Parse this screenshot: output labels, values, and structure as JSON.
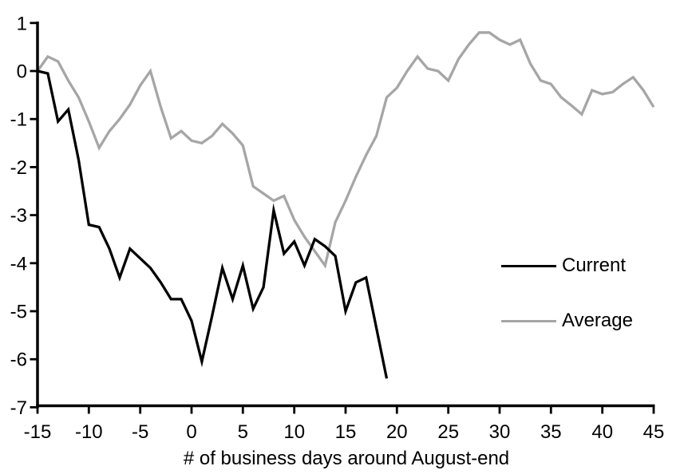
{
  "chart_data": {
    "type": "line",
    "title": "",
    "xlabel": "# of business days around August-end",
    "ylabel": "",
    "xlim": [
      -15,
      45
    ],
    "ylim": [
      -7,
      1
    ],
    "x_ticks": [
      -15,
      -10,
      -5,
      0,
      5,
      10,
      15,
      20,
      25,
      30,
      35,
      40,
      45
    ],
    "y_ticks": [
      1,
      0,
      -1,
      -2,
      -3,
      -4,
      -5,
      -6,
      -7
    ],
    "grid": false,
    "background_color": "#ffffff",
    "axis_color": "#000000",
    "legend": {
      "position": "middle-right",
      "entries": [
        "Current",
        "Average"
      ]
    },
    "series": [
      {
        "name": "Current",
        "color": "#000000",
        "x": [
          -15,
          -14,
          -13,
          -12,
          -11,
          -10,
          -9,
          -8,
          -7,
          -6,
          -5,
          -4,
          -3,
          -2,
          -1,
          0,
          1,
          2,
          3,
          4,
          5,
          6,
          7,
          8,
          9,
          10,
          11,
          12,
          13,
          14,
          15,
          16,
          17,
          18,
          19
        ],
        "values": [
          0,
          -0.05,
          -1.05,
          -0.8,
          -1.85,
          -3.2,
          -3.25,
          -3.7,
          -4.3,
          -3.7,
          -3.9,
          -4.1,
          -4.4,
          -4.75,
          -4.75,
          -5.2,
          -6.05,
          -5.1,
          -4.1,
          -4.75,
          -4.05,
          -4.95,
          -4.5,
          -2.9,
          -3.8,
          -3.55,
          -4.05,
          -3.5,
          -3.65,
          -3.85,
          -5.0,
          -4.4,
          -4.3,
          -5.35,
          -6.4
        ]
      },
      {
        "name": "Average",
        "color": "#a6a6a6",
        "x": [
          -15,
          -14,
          -13,
          -12,
          -11,
          -10,
          -9,
          -8,
          -7,
          -6,
          -5,
          -4,
          -3,
          -2,
          -1,
          0,
          1,
          2,
          3,
          4,
          5,
          6,
          7,
          8,
          9,
          10,
          11,
          12,
          13,
          14,
          15,
          16,
          17,
          18,
          19,
          20,
          21,
          22,
          23,
          24,
          25,
          26,
          27,
          28,
          29,
          30,
          31,
          32,
          33,
          34,
          35,
          36,
          37,
          38,
          39,
          40,
          41,
          42,
          43,
          44,
          45
        ],
        "values": [
          0,
          0.3,
          0.2,
          -0.2,
          -0.55,
          -1.05,
          -1.6,
          -1.25,
          -1.0,
          -0.7,
          -0.3,
          0,
          -0.75,
          -1.4,
          -1.25,
          -1.45,
          -1.5,
          -1.35,
          -1.1,
          -1.3,
          -1.55,
          -2.4,
          -2.55,
          -2.7,
          -2.6,
          -3.1,
          -3.45,
          -3.75,
          -4.05,
          -3.15,
          -2.7,
          -2.2,
          -1.75,
          -1.35,
          -0.55,
          -0.35,
          0,
          0.3,
          0.05,
          0,
          -0.2,
          0.25,
          0.55,
          0.8,
          0.8,
          0.65,
          0.55,
          0.65,
          0.15,
          -0.2,
          -0.27,
          -0.55,
          -0.72,
          -0.9,
          -0.4,
          -0.48,
          -0.44,
          -0.27,
          -0.13,
          -0.4,
          -0.75
        ]
      }
    ]
  }
}
